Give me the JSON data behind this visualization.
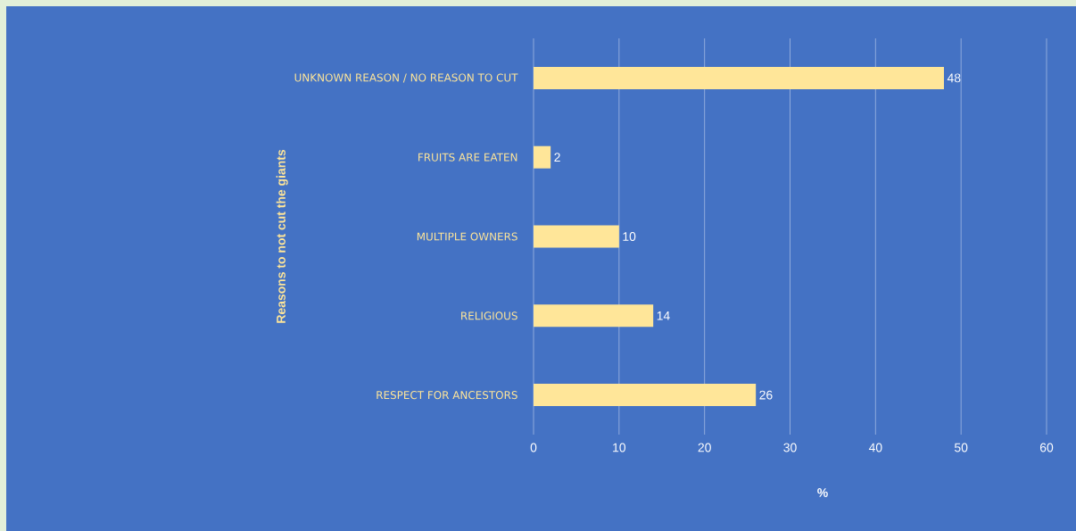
{
  "chart_data": {
    "type": "bar",
    "orientation": "horizontal",
    "ylabel": "Reasons to not cut the giants",
    "xlabel": "%",
    "categories": [
      "UNKNOWN REASON / NO REASON TO CUT",
      "FRUITS ARE EATEN",
      "MULTIPLE OWNERS",
      "RELIGIOUS",
      "RESPECT FOR ANCESTORS"
    ],
    "values": [
      48,
      2,
      10,
      14,
      26
    ],
    "color": "#ffe699",
    "data_labels": true,
    "xlim": [
      0,
      60
    ],
    "xticks": [
      0,
      10,
      20,
      30,
      40,
      50,
      60
    ],
    "grid": "x"
  }
}
